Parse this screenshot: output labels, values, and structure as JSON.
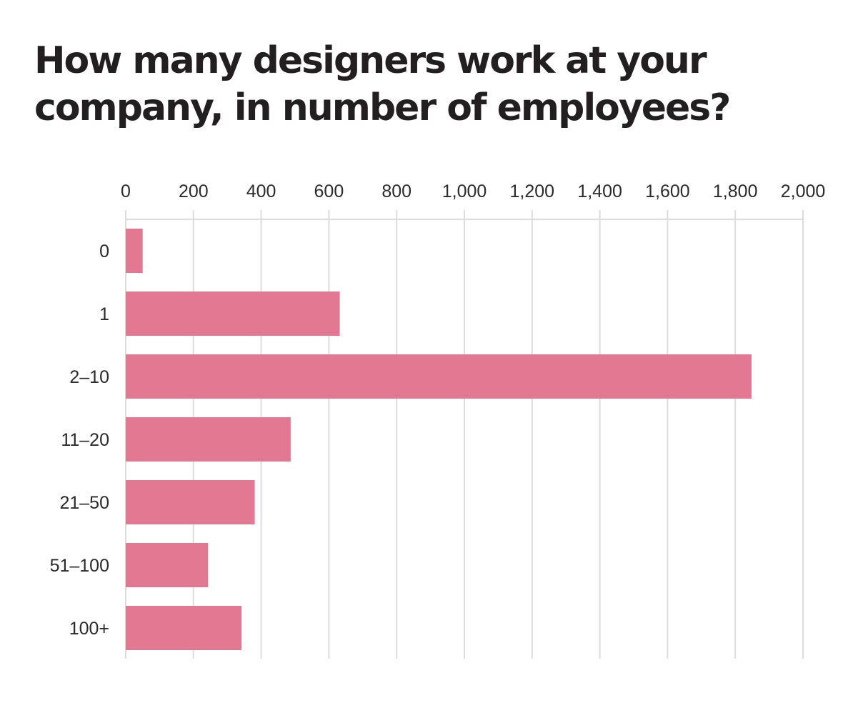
{
  "chart_data": {
    "type": "bar",
    "orientation": "horizontal",
    "title": "How many designers work at your company, in number of employees?",
    "xlabel": "",
    "ylabel": "",
    "categories": [
      "0",
      "1",
      "2–10",
      "11–20",
      "21–50",
      "51–100",
      "100+"
    ],
    "values": [
      50,
      632,
      1848,
      487,
      381,
      243,
      342
    ],
    "xlim": [
      0,
      2000
    ],
    "xticks": [
      0,
      200,
      400,
      600,
      800,
      1000,
      1200,
      1400,
      1600,
      1800,
      2000
    ],
    "xtick_labels": [
      "0",
      "200",
      "400",
      "600",
      "800",
      "1,000",
      "1,200",
      "1,400",
      "1,600",
      "1,800",
      "2,000"
    ],
    "grid": true,
    "axis_position": "top",
    "bar_color": "#e37893",
    "grid_color": "#dcdcdc"
  }
}
